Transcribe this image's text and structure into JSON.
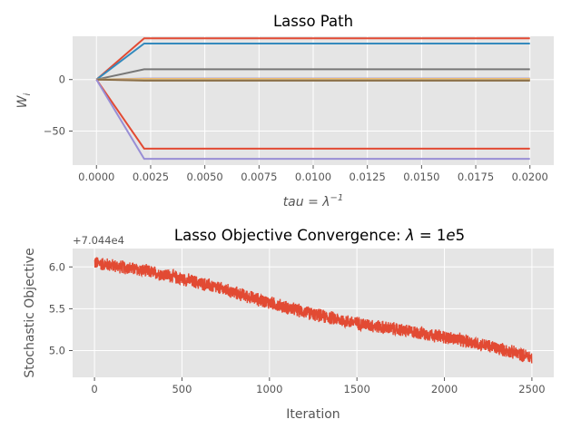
{
  "chart_data": [
    {
      "type": "line",
      "title": "Lasso Path",
      "xlabel": "tau = λ⁻¹",
      "ylabel": "W_i",
      "xlim": [
        -0.0011,
        0.0211
      ],
      "ylim": [
        -83,
        42
      ],
      "xticks": [
        0.0,
        0.0025,
        0.005,
        0.0075,
        0.01,
        0.0125,
        0.015,
        0.0175,
        0.02
      ],
      "xtick_labels": [
        "0.0000",
        "0.0025",
        "0.0050",
        "0.0075",
        "0.0100",
        "0.0125",
        "0.0150",
        "0.0175",
        "0.0200"
      ],
      "yticks": [
        -50,
        0
      ],
      "ytick_labels": [
        "−50",
        "0"
      ],
      "grid": true,
      "x": [
        0.0,
        0.0022,
        0.02
      ],
      "series": [
        {
          "color": "#E24A33",
          "values": [
            0,
            40,
            40
          ]
        },
        {
          "color": "#348ABD",
          "values": [
            0,
            35,
            35
          ]
        },
        {
          "color": "#777777",
          "values": [
            0,
            10,
            10
          ]
        },
        {
          "color": "#988ED5",
          "values": [
            0,
            1,
            1
          ]
        },
        {
          "color": "#FBC15E",
          "values": [
            0,
            0.5,
            0.5
          ]
        },
        {
          "color": "#8EBA42",
          "values": [
            0,
            -0.3,
            -0.3
          ]
        },
        {
          "color": "#FFB5B8",
          "values": [
            0,
            -0.6,
            -0.6
          ]
        },
        {
          "color": "#8B6F47",
          "values": [
            0,
            -1,
            -1
          ]
        },
        {
          "color": "#E24A33",
          "values": [
            0,
            -67,
            -67
          ]
        },
        {
          "color": "#988ED5",
          "values": [
            0,
            -77,
            -77
          ]
        }
      ]
    },
    {
      "type": "line",
      "title": "Lasso Objective Convergence: λ = 1e5",
      "xlabel": "Iteration",
      "ylabel": "Stochastic Objective",
      "offset_text": "+7.044e4",
      "xlim": [
        -125,
        2625
      ],
      "ylim": [
        4.68,
        6.22
      ],
      "xticks": [
        0,
        500,
        1000,
        1500,
        2000,
        2500
      ],
      "xtick_labels": [
        "0",
        "500",
        "1000",
        "1500",
        "2000",
        "2500"
      ],
      "yticks": [
        5.0,
        5.5,
        6.0
      ],
      "ytick_labels": [
        "5.0",
        "5.5",
        "6.0"
      ],
      "grid": true,
      "series": [
        {
          "color": "#E24A33",
          "trend_start": 6.05,
          "trend_end": 4.9,
          "n_points": 2500,
          "noise_amplitude": 0.09
        }
      ]
    }
  ]
}
